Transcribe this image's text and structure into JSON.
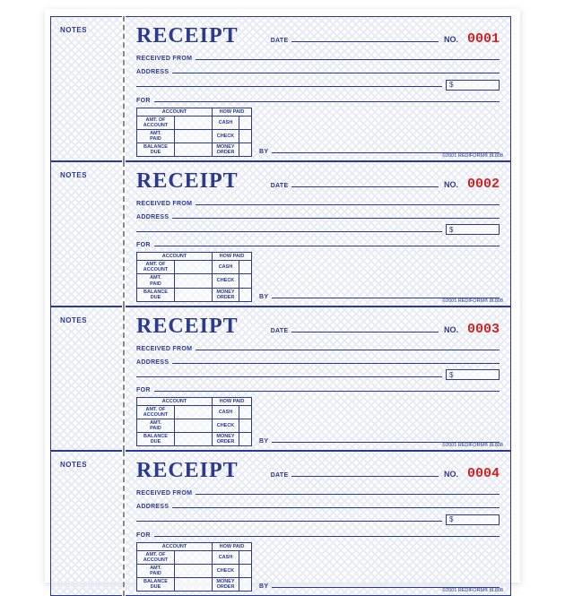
{
  "colors": {
    "ink": "#2a3a8f",
    "number": "#d62020",
    "pattern": "#e8ebf5",
    "page_bg": "#ffffff"
  },
  "labels": {
    "stub": "NOTES",
    "title": "RECEIPT",
    "date": "DATE",
    "no": "NO.",
    "received_from": "RECEIVED FROM",
    "address": "ADDRESS",
    "for": "FOR",
    "dollar": "$",
    "by": "BY",
    "copyright": "©2001 REDIFORM® 8L808"
  },
  "table": {
    "account_header": "ACCOUNT",
    "how_paid_header": "HOW PAID",
    "rows": [
      {
        "left": "AMT. OF\nACCOUNT",
        "right": "CASH"
      },
      {
        "left": "AMT.\nPAID",
        "right": "CHECK"
      },
      {
        "left": "BALANCE\nDUE",
        "right": "MONEY\nORDER"
      }
    ]
  },
  "receipts": [
    {
      "number": "0001"
    },
    {
      "number": "0002"
    },
    {
      "number": "0003"
    },
    {
      "number": "0004"
    }
  ]
}
